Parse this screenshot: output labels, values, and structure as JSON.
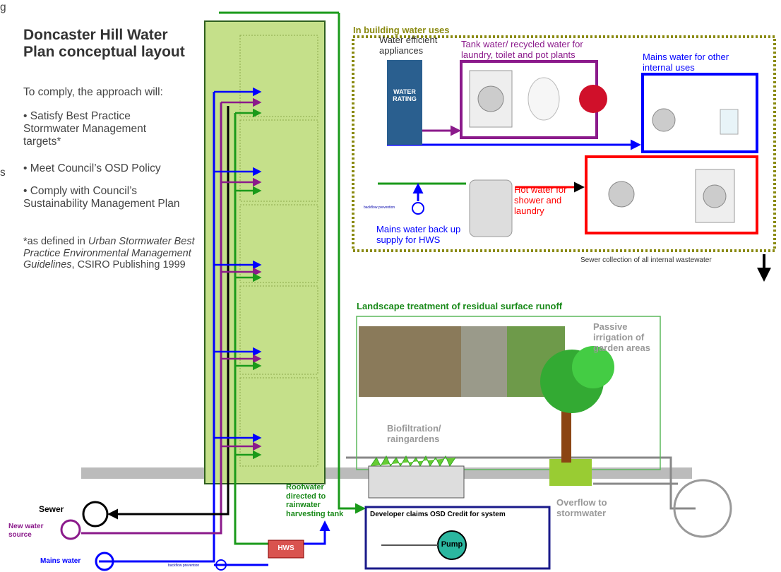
{
  "fragments": [
    "g",
    "s"
  ],
  "sidebar": {
    "title": "Doncaster Hill Water Plan conceptual layout",
    "intro": "To comply, the approach will:",
    "bullets": [
      "• Satisfy Best Practice Stormwater Management targets*",
      "• Meet Council’s OSD Policy",
      "• Comply with Council’s Sustainability Management Plan"
    ],
    "footnote": {
      "prefix": "*as defined in ",
      "title": "Urban Stormwater Best Practice Environmental Management Guidelines",
      "suffix": ", CSIRO Publishing 1999"
    }
  },
  "building": {
    "heading": "In building water uses",
    "appliances": "Water efficient appliances",
    "rating": "WATER RATING",
    "tank": "Tank water/ recycled water for laundry, toilet and pot plants",
    "mains": "Mains water for other internal uses",
    "hot": "Hot water for shower and laundry",
    "backup": "Mains water back up supply for HWS",
    "backflow": "backflow prevention",
    "sewer": "Sewer collection of all internal wastewater"
  },
  "landscape": {
    "heading": "Landscape treatment of residual surface runoff",
    "passive": "Passive irrigation of garden areas",
    "bio": "Biofiltration/ raingardens",
    "overflow": "Overflow to stormwater"
  },
  "services": {
    "roof": "Roofwater directed to rainwater harvesting tank",
    "osd": "Developer claims OSD Credit for system",
    "pump": "Pump",
    "hws": "HWS",
    "sewer": "Sewer",
    "new_water": "New water source",
    "mains": "Mains water",
    "backflow": "backflow prevention"
  }
}
